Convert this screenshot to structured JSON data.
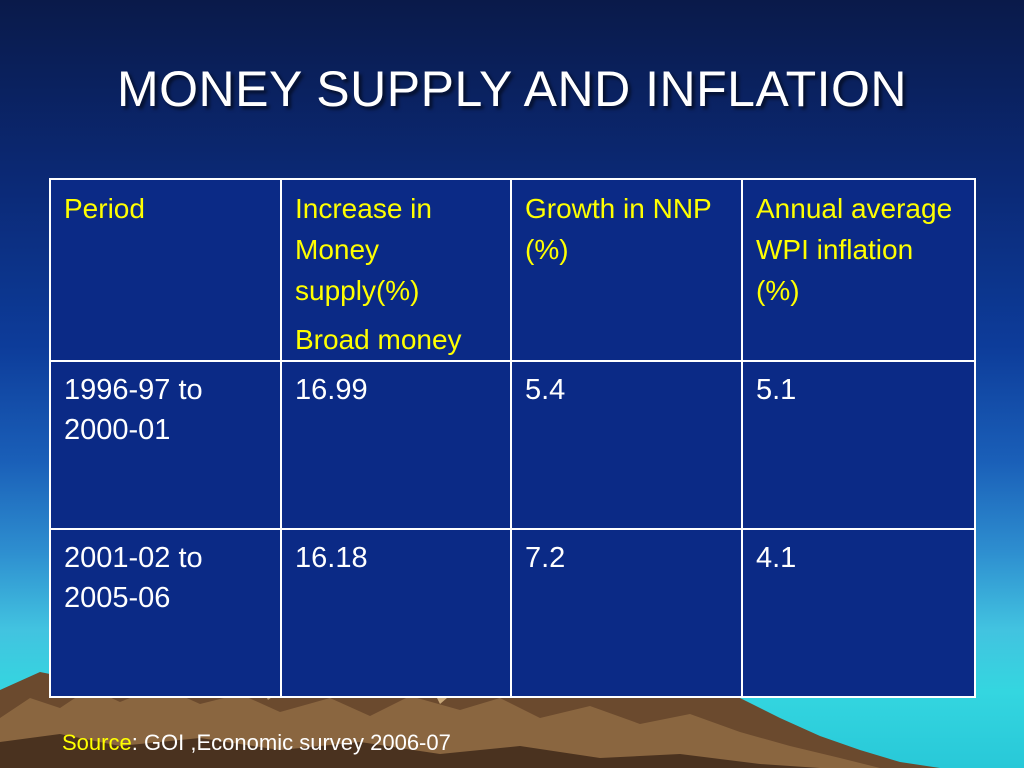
{
  "slide": {
    "title": "MONEY SUPPLY AND INFLATION"
  },
  "table": {
    "headers": {
      "period": "Period",
      "money_line1": "Increase in Money supply(%)",
      "money_line2": "Broad money",
      "nnp": "Growth in NNP (%)",
      "wpi": "Annual average WPI inflation (%)"
    },
    "rows": [
      {
        "period": "1996-97 to 2000-01",
        "money": "16.99",
        "nnp": "5.4",
        "wpi": "5.1"
      },
      {
        "period": "2001-02 to 2005-06",
        "money": "16.18",
        "nnp": "7.2",
        "wpi": "4.1"
      }
    ]
  },
  "source": {
    "label": "Source",
    "text": ": GOI ,Economic survey 2006-07"
  },
  "colors": {
    "header_text": "#ffff00",
    "body_text": "#ffffff",
    "table_bg": "#0b2a86",
    "border": "#ffffff"
  }
}
